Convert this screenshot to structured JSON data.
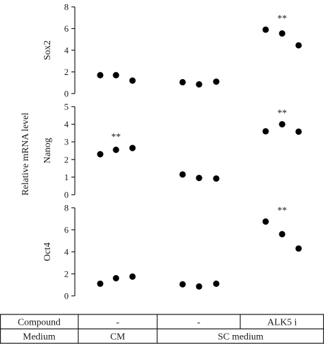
{
  "chart_data": {
    "type": "scatter",
    "shared_ylabel": "Relative mRNA level",
    "groups": [
      "CM",
      "SC medium",
      "ALK5 i"
    ],
    "panels": [
      {
        "name": "Sox2",
        "ylim": [
          0,
          8
        ],
        "yticks": [
          0,
          2,
          4,
          6,
          8
        ],
        "groups": [
          [
            1.7,
            1.7,
            1.2
          ],
          [
            1.05,
            0.85,
            1.1
          ],
          [
            5.9,
            5.55,
            4.45
          ]
        ],
        "annotations": [
          {
            "group": 2,
            "text": "**"
          }
        ]
      },
      {
        "name": "Nanog",
        "ylim": [
          0,
          5
        ],
        "yticks": [
          0,
          1,
          2,
          3,
          4,
          5
        ],
        "groups": [
          [
            2.3,
            2.55,
            2.65
          ],
          [
            1.15,
            0.95,
            0.92
          ],
          [
            3.6,
            4.0,
            3.58
          ]
        ],
        "annotations": [
          {
            "group": 0,
            "text": "**"
          },
          {
            "group": 2,
            "text": "**"
          }
        ]
      },
      {
        "name": "Oct4",
        "ylim": [
          0,
          8
        ],
        "yticks": [
          0,
          2,
          4,
          6,
          8
        ],
        "groups": [
          [
            1.1,
            1.6,
            1.75
          ],
          [
            1.05,
            0.85,
            1.1
          ],
          [
            6.75,
            5.6,
            4.3
          ]
        ],
        "annotations": [
          {
            "group": 2,
            "text": "**"
          }
        ]
      }
    ]
  },
  "table": {
    "rows": [
      {
        "label": "Compound",
        "cells": [
          "-",
          "-",
          "ALK5 i"
        ]
      },
      {
        "label": "Medium",
        "cells": [
          "CM",
          "SC medium"
        ]
      }
    ]
  }
}
